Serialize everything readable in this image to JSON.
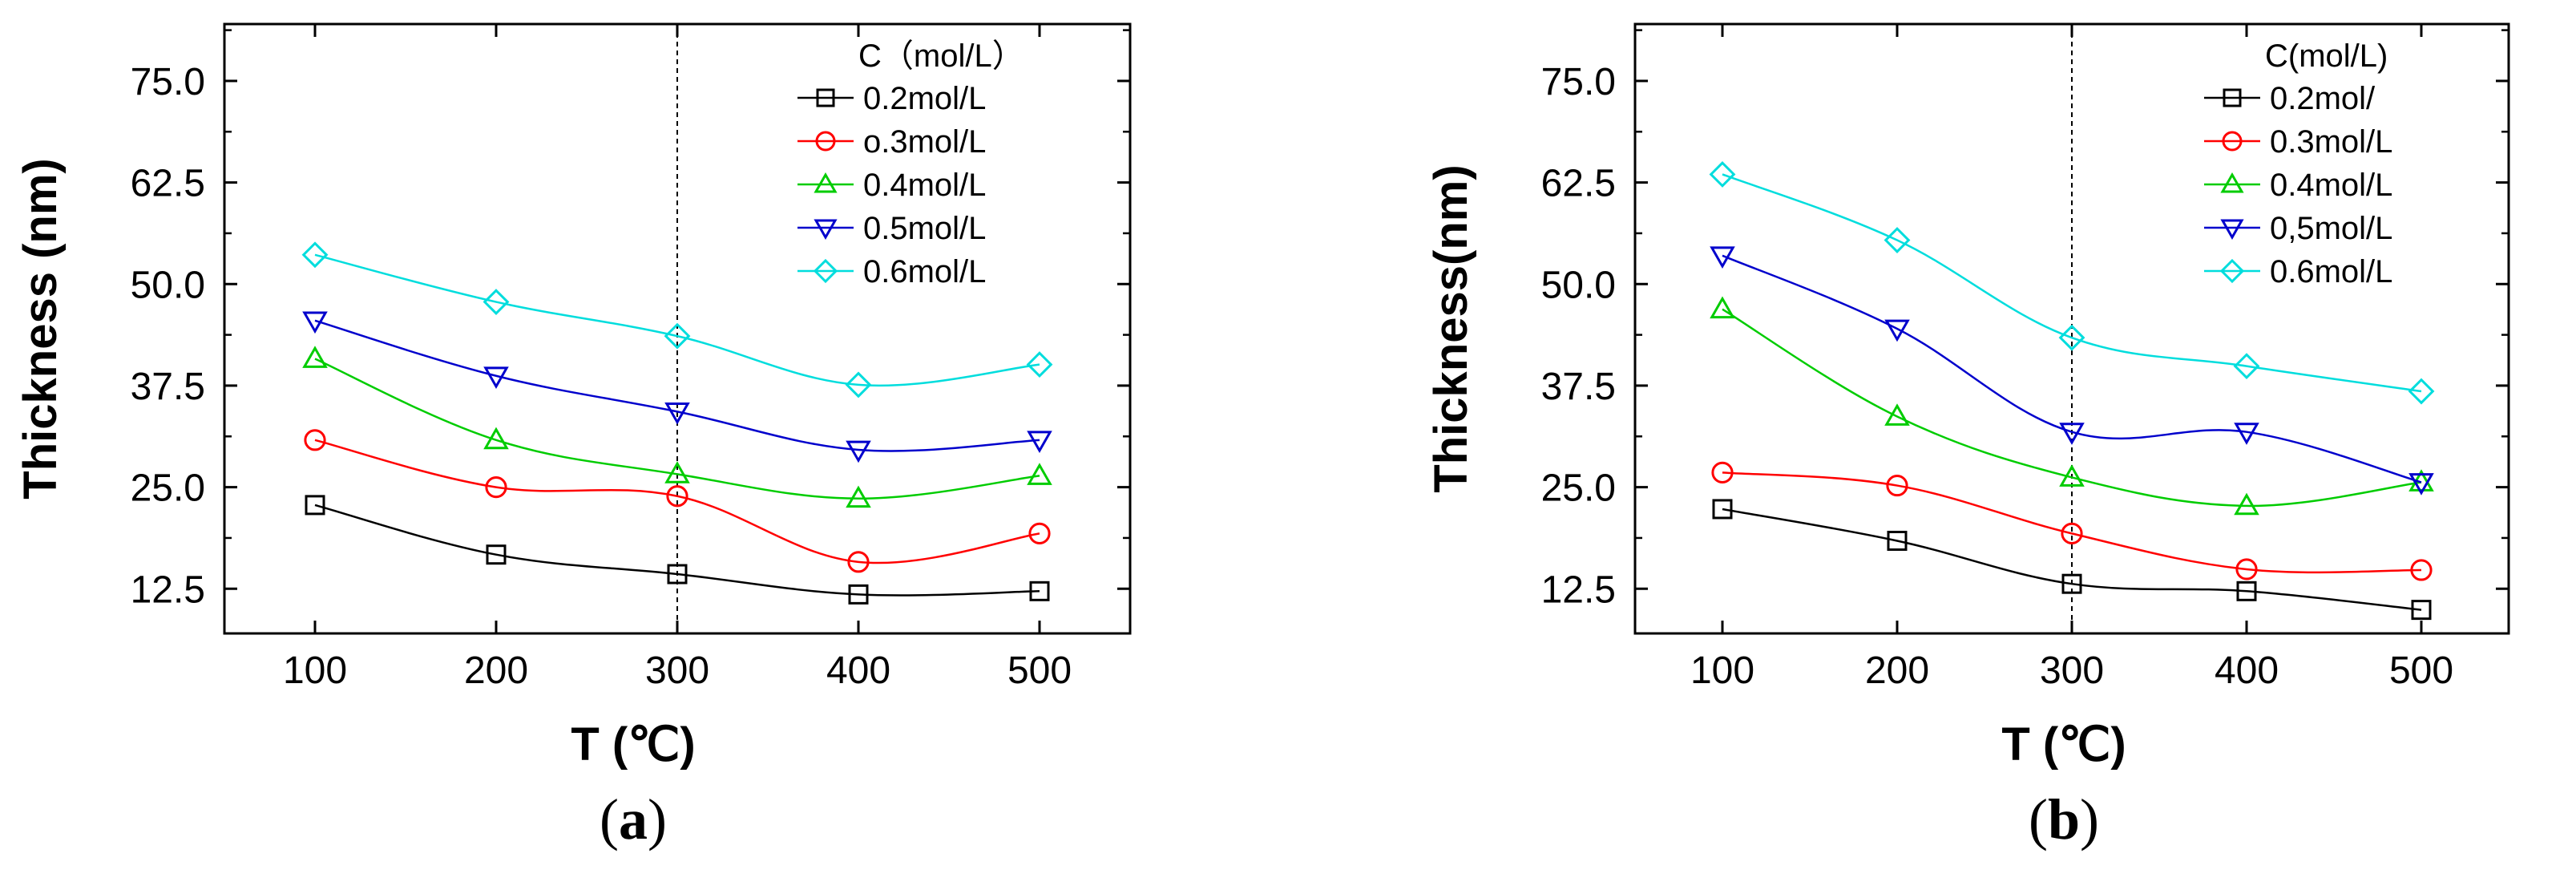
{
  "chart_data": [
    {
      "type": "line",
      "panel_label": {
        "open": "(",
        "letter": "a",
        "close": ")"
      },
      "xlabel": "T (℃)",
      "ylabel": "Thickness (nm)",
      "xlim": [
        50,
        550
      ],
      "ylim": [
        7,
        82
      ],
      "x_ticks": [
        100,
        200,
        300,
        400,
        500
      ],
      "x_tick_labels": [
        "100",
        "200",
        "300",
        "400",
        "500"
      ],
      "y_ticks": [
        12.5,
        25.0,
        37.5,
        50.0,
        62.5,
        75.0
      ],
      "y_tick_labels": [
        "12.5",
        "25.0",
        "37.5",
        "50.0",
        "62.5",
        "75.0"
      ],
      "reference_line_x": 300,
      "legend": {
        "title": "C（mol/L）",
        "position": "top-right"
      },
      "x": [
        100,
        200,
        300,
        400,
        500
      ],
      "series": [
        {
          "name": "0.2mol/L",
          "color": "#000000",
          "marker": "square",
          "values": [
            22.8,
            16.7,
            14.3,
            11.8,
            12.2
          ]
        },
        {
          "name": "o.3mol/L",
          "color": "#ff0000",
          "marker": "circle",
          "values": [
            30.8,
            25.0,
            23.9,
            15.8,
            19.3
          ]
        },
        {
          "name": "0.4mol/L",
          "color": "#00cc00",
          "marker": "triangle-up",
          "values": [
            40.8,
            30.8,
            26.6,
            23.6,
            26.4
          ]
        },
        {
          "name": "0.5mol/L",
          "color": "#0000cc",
          "marker": "triangle-down",
          "values": [
            45.5,
            38.7,
            34.3,
            29.6,
            30.8
          ]
        },
        {
          "name": "0.6mol/L",
          "color": "#00dddd",
          "marker": "diamond",
          "values": [
            53.6,
            47.8,
            43.6,
            37.6,
            40.1
          ]
        }
      ]
    },
    {
      "type": "line",
      "panel_label": {
        "open": "(",
        "letter": "b",
        "close": ")"
      },
      "xlabel": "T (℃)",
      "ylabel": "Thickness(nm)",
      "xlim": [
        50,
        550
      ],
      "ylim": [
        7,
        82
      ],
      "x_ticks": [
        100,
        200,
        300,
        400,
        500
      ],
      "x_tick_labels": [
        "100",
        "200",
        "300",
        "400",
        "500"
      ],
      "y_ticks": [
        12.5,
        25.0,
        37.5,
        50.0,
        62.5,
        75.0
      ],
      "y_tick_labels": [
        "12.5",
        "25.0",
        "37.5",
        "50.0",
        "62.5",
        "75.0"
      ],
      "reference_line_x": 300,
      "legend": {
        "title": "C(mol/L)",
        "position": "top-right"
      },
      "x": [
        100,
        200,
        300,
        400,
        500
      ],
      "series": [
        {
          "name": "0.2mol/",
          "color": "#000000",
          "marker": "square",
          "values": [
            22.3,
            18.4,
            13.1,
            12.2,
            9.9
          ]
        },
        {
          "name": "0.3mol/L",
          "color": "#ff0000",
          "marker": "circle",
          "values": [
            26.8,
            25.2,
            19.3,
            14.9,
            14.8
          ]
        },
        {
          "name": "0.4mol/L",
          "color": "#00cc00",
          "marker": "triangle-up",
          "values": [
            46.9,
            33.7,
            26.2,
            22.7,
            25.6
          ]
        },
        {
          "name": "0,5mol/L",
          "color": "#0000cc",
          "marker": "triangle-down",
          "values": [
            53.5,
            44.5,
            31.8,
            31.8,
            25.6
          ]
        },
        {
          "name": "0.6mol/L",
          "color": "#00dddd",
          "marker": "diamond",
          "values": [
            63.5,
            55.4,
            43.4,
            39.9,
            36.8
          ]
        }
      ]
    }
  ]
}
